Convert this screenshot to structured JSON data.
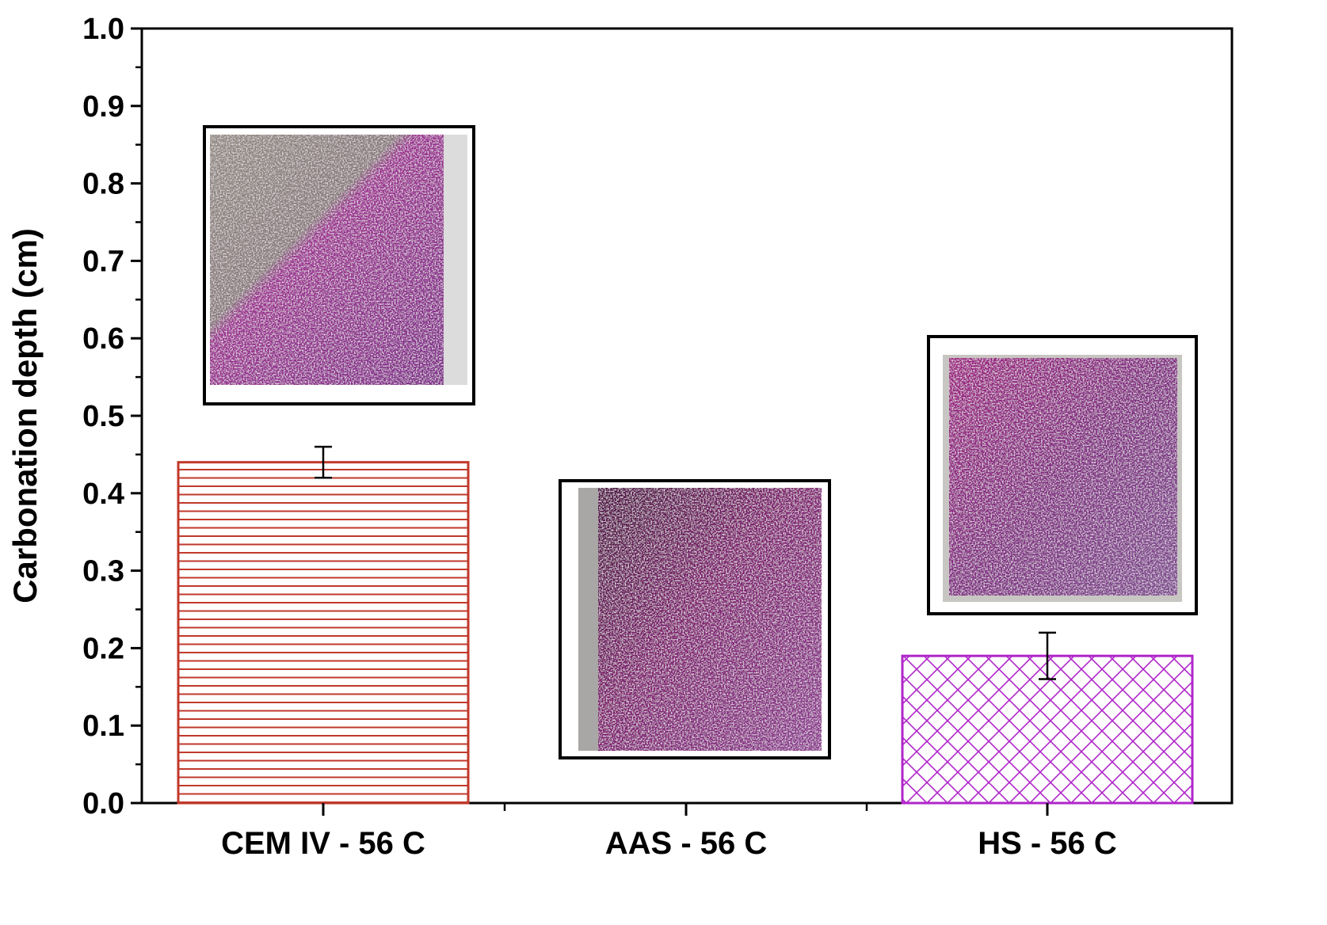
{
  "chart_data": {
    "type": "bar",
    "categories": [
      "CEM IV - 56 C",
      "AAS - 56 C",
      "HS - 56 C"
    ],
    "series": [
      {
        "values": [
          0.44,
          null,
          0.19
        ],
        "errors": [
          0.02,
          null,
          0.03
        ]
      }
    ],
    "title": "",
    "xlabel": "",
    "ylabel": "Carbonation depth (cm)",
    "ylim": [
      0,
      1.0
    ],
    "yticks": [
      "0.0",
      "0.1",
      "0.2",
      "0.3",
      "0.4",
      "0.5",
      "0.6",
      "0.7",
      "0.8",
      "0.9",
      "1.0"
    ],
    "grid": false,
    "legend": "none",
    "bar_colors": [
      "#c0392b",
      "#b026c9"
    ],
    "bar_patterns": [
      "horizontal-lines",
      "crosshatch"
    ],
    "insets": [
      {
        "category": "CEM IV - 56 C",
        "depicts": "phenolphthalein-sprayed concrete cross-section"
      },
      {
        "category": "AAS - 56 C",
        "depicts": "phenolphthalein-sprayed concrete cross-section"
      },
      {
        "category": "HS - 56 C",
        "depicts": "phenolphthalein-sprayed concrete cross-section"
      }
    ]
  }
}
